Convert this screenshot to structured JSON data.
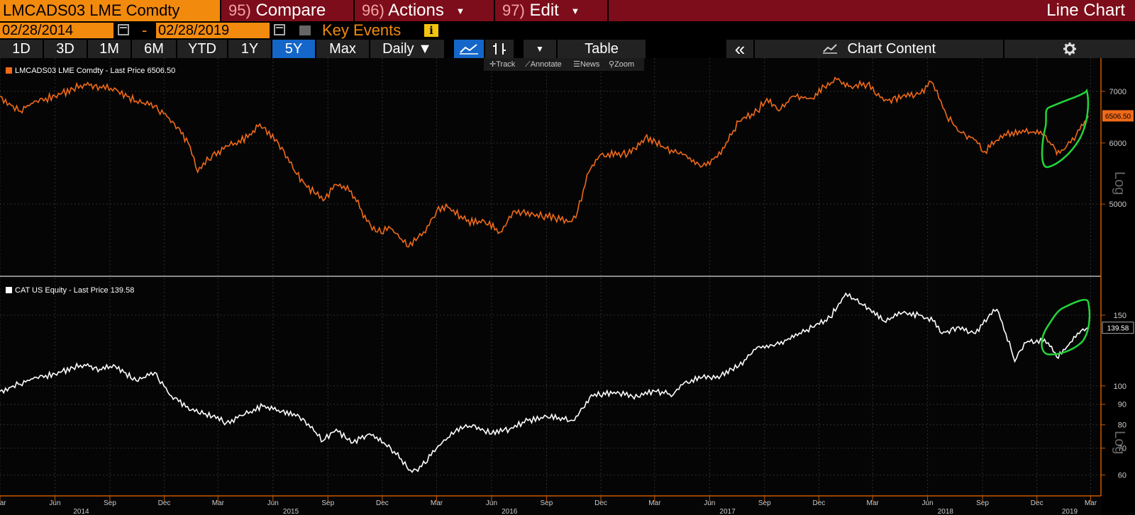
{
  "header": {
    "security": "LMCADS03 LME Comdty",
    "menu": [
      {
        "num": "95)",
        "label": "Compare",
        "caret": false
      },
      {
        "num": "96)",
        "label": "Actions",
        "caret": true
      },
      {
        "num": "97)",
        "label": "Edit",
        "caret": true
      }
    ],
    "chart_type": "Line Chart"
  },
  "dates": {
    "start": "02/28/2014",
    "separator": "-",
    "end": "02/28/2019"
  },
  "key_events": {
    "label": "Key Events",
    "info_glyph": "i"
  },
  "ranges": [
    "1D",
    "3D",
    "1M",
    "6M",
    "YTD",
    "1Y",
    "5Y",
    "Max"
  ],
  "active_range": "5Y",
  "toolbar": {
    "frequency": "Daily",
    "table": "Table",
    "chart_content": "Chart Content",
    "collapse_glyph": "«"
  },
  "mini_tools": [
    "Track",
    "Annotate",
    "News",
    "Zoom"
  ],
  "colors": {
    "copper": "#f06a1a",
    "cat": "#ffffff",
    "annotation": "#22d63a",
    "grid": "#3a3a3a",
    "axis": "#c85a00"
  },
  "chart_data": [
    {
      "type": "line",
      "legend": "LMCADS03 LME Comdty - Last Price 6506.50",
      "last_value_label": "6506.50",
      "scale": "log",
      "y_ticks": [
        5000,
        6000,
        7000
      ],
      "ylim": [
        4100,
        7600
      ],
      "axis_label": "Log",
      "x_range": [
        "2014-03-01",
        "2019-03-04"
      ],
      "series": [
        {
          "x": [
            "2014-03-01",
            "2014-04-01",
            "2014-05-01",
            "2014-06-01",
            "2014-07-01",
            "2014-07-20",
            "2014-08-15",
            "2014-09-15",
            "2014-10-15",
            "2014-11-15",
            "2014-12-15",
            "2015-01-10",
            "2015-01-26",
            "2015-02-20",
            "2015-03-20",
            "2015-04-20",
            "2015-05-10",
            "2015-06-10",
            "2015-07-08",
            "2015-07-25",
            "2015-08-24",
            "2015-09-15",
            "2015-10-10",
            "2015-11-05",
            "2015-11-23",
            "2015-12-15",
            "2016-01-14",
            "2016-02-05",
            "2016-03-01",
            "2016-03-20",
            "2016-04-20",
            "2016-05-20",
            "2016-06-15",
            "2016-07-10",
            "2016-08-10",
            "2016-09-15",
            "2016-10-10",
            "2016-10-20",
            "2016-11-11",
            "2016-12-01",
            "2017-01-15",
            "2017-02-13",
            "2017-03-20",
            "2017-04-20",
            "2017-05-20",
            "2017-06-20",
            "2017-07-20",
            "2017-08-20",
            "2017-09-05",
            "2017-09-25",
            "2017-10-20",
            "2017-11-20",
            "2017-12-10",
            "2017-12-31",
            "2018-01-20",
            "2018-02-20",
            "2018-03-20",
            "2018-04-20",
            "2018-05-20",
            "2018-06-07",
            "2018-06-20",
            "2018-07-03",
            "2018-07-25",
            "2018-08-15",
            "2018-09-05",
            "2018-09-25",
            "2018-10-20",
            "2018-11-20",
            "2018-12-10",
            "2018-12-31",
            "2019-01-03",
            "2019-01-20",
            "2019-02-05",
            "2019-02-25"
          ],
          "y": [
            6900,
            6600,
            6800,
            6900,
            7050,
            7150,
            7100,
            7000,
            6800,
            6700,
            6400,
            6000,
            5500,
            5800,
            5950,
            6100,
            6350,
            6000,
            5500,
            5300,
            5050,
            5300,
            5200,
            4750,
            4600,
            4650,
            4400,
            4550,
            4900,
            4950,
            4750,
            4750,
            4600,
            4900,
            4850,
            4800,
            4750,
            4800,
            5500,
            5800,
            5800,
            6100,
            5900,
            5800,
            5600,
            5800,
            6400,
            6600,
            6850,
            6600,
            6900,
            6850,
            7100,
            7250,
            7100,
            7150,
            6800,
            6900,
            6950,
            7200,
            6850,
            6500,
            6200,
            6100,
            5850,
            6050,
            6200,
            6200,
            6150,
            5900,
            5800,
            5950,
            6150,
            6506.5
          ]
        }
      ]
    },
    {
      "type": "line",
      "legend": "CAT US Equity - Last Price 139.58",
      "last_value_label": "139.58",
      "scale": "log",
      "y_ticks": [
        60,
        70,
        80,
        90,
        100,
        150
      ],
      "ylim": [
        55,
        180
      ],
      "axis_label": "Log",
      "series": [
        {
          "x": [
            "2014-03-01",
            "2014-04-01",
            "2014-05-01",
            "2014-06-01",
            "2014-07-01",
            "2014-07-20",
            "2014-08-15",
            "2014-09-10",
            "2014-10-15",
            "2014-11-15",
            "2014-12-10",
            "2015-01-15",
            "2015-02-20",
            "2015-03-15",
            "2015-04-15",
            "2015-05-15",
            "2015-06-10",
            "2015-07-15",
            "2015-08-24",
            "2015-09-15",
            "2015-10-10",
            "2015-11-10",
            "2015-12-15",
            "2016-01-20",
            "2016-02-05",
            "2016-03-01",
            "2016-04-01",
            "2016-05-01",
            "2016-06-01",
            "2016-07-01",
            "2016-08-01",
            "2016-09-01",
            "2016-10-15",
            "2016-11-01",
            "2016-11-15",
            "2017-01-01",
            "2017-02-01",
            "2017-03-01",
            "2017-04-01",
            "2017-04-20",
            "2017-05-20",
            "2017-06-20",
            "2017-07-20",
            "2017-08-20",
            "2017-09-20",
            "2017-10-20",
            "2017-11-20",
            "2017-12-20",
            "2018-01-15",
            "2018-01-28",
            "2018-02-10",
            "2018-02-25",
            "2018-03-20",
            "2018-04-20",
            "2018-05-20",
            "2018-06-10",
            "2018-06-25",
            "2018-07-20",
            "2018-08-20",
            "2018-09-10",
            "2018-09-25",
            "2018-10-10",
            "2018-10-25",
            "2018-11-10",
            "2018-12-01",
            "2018-12-20",
            "2019-01-03",
            "2019-01-20",
            "2019-02-10",
            "2019-02-25"
          ],
          "y": [
            97,
            101,
            105,
            107,
            111,
            113,
            110,
            112,
            103,
            108,
            95,
            87,
            84,
            81,
            85,
            89,
            87,
            84,
            73,
            78,
            72,
            76,
            70,
            61,
            63,
            70,
            77,
            80,
            76,
            78,
            82,
            84,
            82,
            88,
            95,
            96,
            94,
            97,
            95,
            102,
            105,
            106,
            112,
            125,
            127,
            132,
            140,
            148,
            170,
            165,
            160,
            155,
            145,
            152,
            150,
            145,
            135,
            140,
            135,
            148,
            155,
            135,
            115,
            128,
            130,
            128,
            118,
            125,
            135,
            139.58
          ]
        }
      ]
    }
  ],
  "x_axis": {
    "months": [
      {
        "d": "2014-03-01",
        "label": "Mar"
      },
      {
        "d": "2014-06-01",
        "label": "Jun"
      },
      {
        "d": "2014-09-01",
        "label": "Sep"
      },
      {
        "d": "2014-12-01",
        "label": "Dec"
      },
      {
        "d": "2015-03-01",
        "label": "Mar"
      },
      {
        "d": "2015-06-01",
        "label": "Jun"
      },
      {
        "d": "2015-09-01",
        "label": "Sep"
      },
      {
        "d": "2015-12-01",
        "label": "Dec"
      },
      {
        "d": "2016-03-01",
        "label": "Mar"
      },
      {
        "d": "2016-06-01",
        "label": "Jun"
      },
      {
        "d": "2016-09-01",
        "label": "Sep"
      },
      {
        "d": "2016-12-01",
        "label": "Dec"
      },
      {
        "d": "2017-03-01",
        "label": "Mar"
      },
      {
        "d": "2017-06-01",
        "label": "Jun"
      },
      {
        "d": "2017-09-01",
        "label": "Sep"
      },
      {
        "d": "2017-12-01",
        "label": "Dec"
      },
      {
        "d": "2018-03-01",
        "label": "Mar"
      },
      {
        "d": "2018-06-01",
        "label": "Jun"
      },
      {
        "d": "2018-09-01",
        "label": "Sep"
      },
      {
        "d": "2018-12-01",
        "label": "Dec"
      },
      {
        "d": "2019-03-01",
        "label": "Mar"
      }
    ],
    "years": [
      {
        "d": "2014-07-15",
        "label": "2014"
      },
      {
        "d": "2015-07-01",
        "label": "2015"
      },
      {
        "d": "2016-07-01",
        "label": "2016"
      },
      {
        "d": "2017-07-01",
        "label": "2017"
      },
      {
        "d": "2018-07-01",
        "label": "2018"
      },
      {
        "d": "2019-01-25",
        "label": "2019"
      }
    ]
  }
}
